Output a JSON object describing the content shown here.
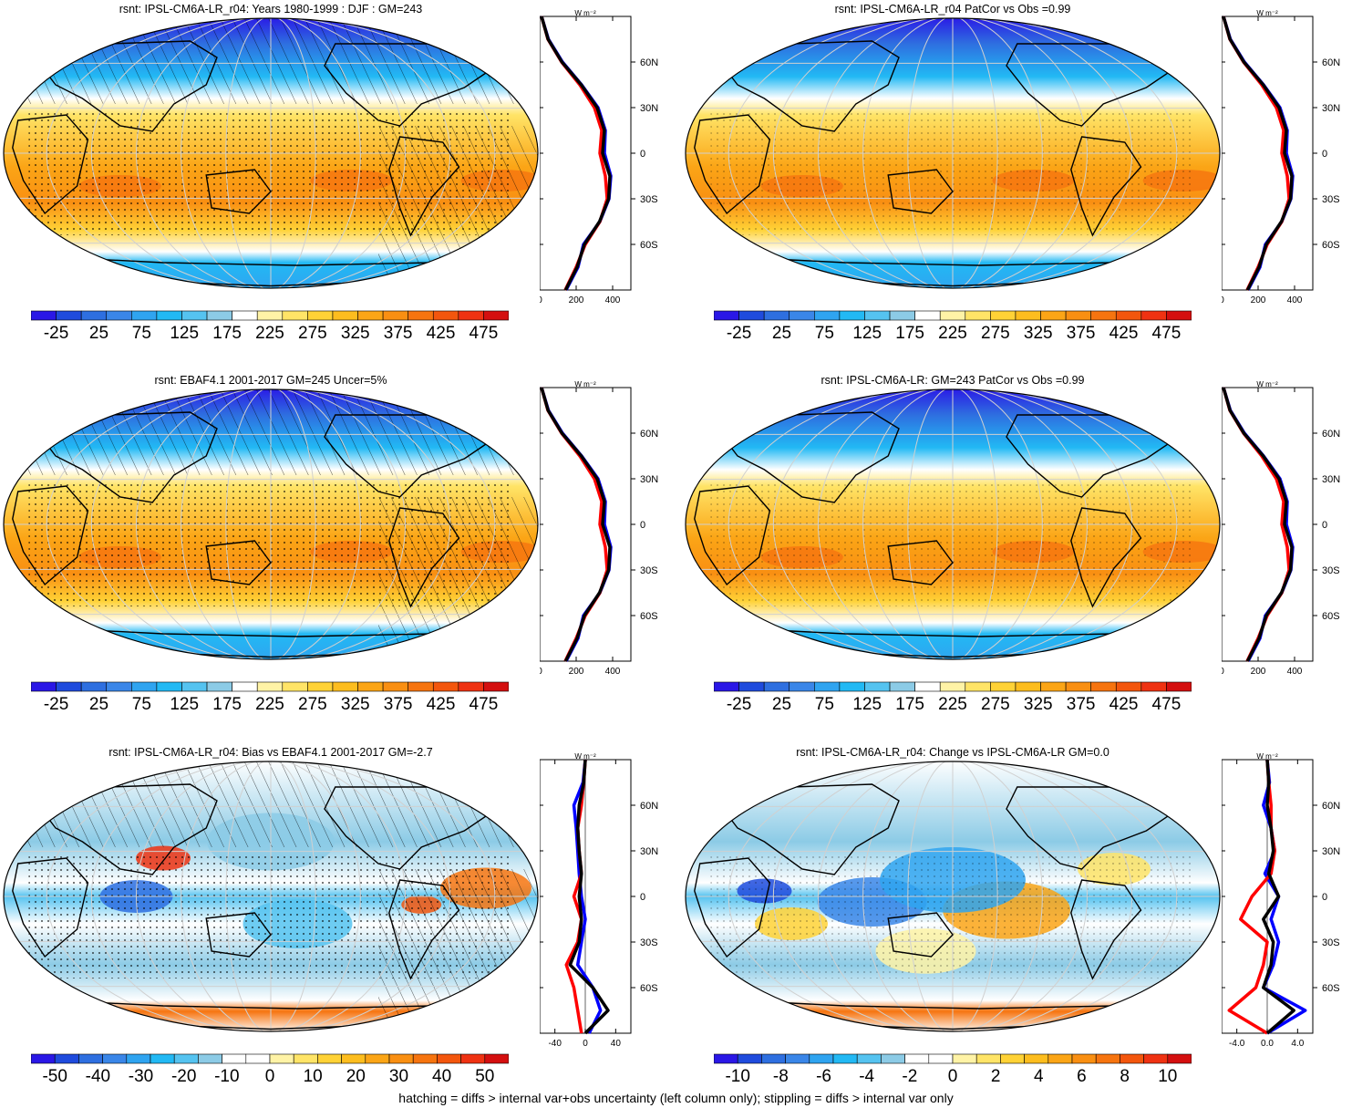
{
  "footer": "hatching = diffs > internal var+obs uncertainty (left column only); stippling = diffs > internal var only",
  "colors": {
    "mean_scale": [
      "#2a17e6",
      "#1f4bdd",
      "#2e6fe0",
      "#3a86e8",
      "#2fa4f0",
      "#22b9f4",
      "#55c3f0",
      "#8ccbe6",
      "#ffffff",
      "#fff3a6",
      "#ffe467",
      "#ffd236",
      "#fdbd1e",
      "#fba516",
      "#f98f12",
      "#f6740f",
      "#f3560d",
      "#ef3212",
      "#d40f0f"
    ],
    "bias_scale": [
      "#2a17e6",
      "#1f4bdd",
      "#2e6fe0",
      "#3a86e8",
      "#2fa4f0",
      "#22b9f4",
      "#55c3f0",
      "#8ccbe6",
      "#ffffff",
      "#ffffff",
      "#fff3a6",
      "#ffe467",
      "#ffd236",
      "#fdbd1e",
      "#fba516",
      "#f98f12",
      "#f6740f",
      "#f3560d",
      "#ef3212",
      "#d40f0f"
    ],
    "model_line": "#ff0000",
    "obs_line": "#0000ff",
    "ens_line": "#000000"
  },
  "profile_units": "W m⁻²",
  "panels": [
    {
      "id": "model-djf",
      "title": "rsnt: IPSL-CM6A-LR_r04: Years 1980-1999 : DJF : GM=243",
      "hatched": true,
      "kind": "mean",
      "colorbar_labels": [
        "-25",
        "25",
        "75",
        "125",
        "175",
        "225",
        "275",
        "325",
        "375",
        "425",
        "475"
      ],
      "profile_xticks": [
        "0",
        "200",
        "400"
      ],
      "profile_yticks": [
        "60N",
        "30N",
        "0",
        "30S",
        "60S"
      ]
    },
    {
      "id": "patcor-1",
      "title": "rsnt: IPSL-CM6A-LR_r04 PatCor vs Obs =0.99",
      "hatched": false,
      "kind": "mean",
      "colorbar_labels": [
        "-25",
        "25",
        "75",
        "125",
        "175",
        "225",
        "275",
        "325",
        "375",
        "425",
        "475"
      ],
      "profile_xticks": [
        "0",
        "200",
        "400"
      ],
      "profile_yticks": [
        "60N",
        "30N",
        "0",
        "30S",
        "60S"
      ]
    },
    {
      "id": "obs-ebaf",
      "title": "rsnt: EBAF4.1 2001-2017 GM=245 Uncer=5%",
      "hatched": true,
      "kind": "mean",
      "colorbar_labels": [
        "-25",
        "25",
        "75",
        "125",
        "175",
        "225",
        "275",
        "325",
        "375",
        "425",
        "475"
      ],
      "profile_xticks": [
        "0",
        "200",
        "400"
      ],
      "profile_yticks": [
        "60N",
        "30N",
        "0",
        "30S",
        "60S"
      ]
    },
    {
      "id": "ensemble",
      "title": "rsnt: IPSL-CM6A-LR: GM=243 PatCor vs Obs =0.99",
      "hatched": false,
      "kind": "mean",
      "colorbar_labels": [
        "-25",
        "25",
        "75",
        "125",
        "175",
        "225",
        "275",
        "325",
        "375",
        "425",
        "475"
      ],
      "profile_xticks": [
        "0",
        "200",
        "400"
      ],
      "profile_yticks": [
        "60N",
        "30N",
        "0",
        "30S",
        "60S"
      ]
    },
    {
      "id": "bias",
      "title": "rsnt: IPSL-CM6A-LR_r04: Bias vs EBAF4.1 2001-2017 GM=-2.7",
      "hatched": true,
      "kind": "bias",
      "colorbar_labels": [
        "-50",
        "-40",
        "-30",
        "-20",
        "-10",
        "0",
        "10",
        "20",
        "30",
        "40",
        "50"
      ],
      "profile_xticks": [
        "-40",
        "0",
        "40"
      ],
      "profile_yticks": [
        "60N",
        "30N",
        "0",
        "30S",
        "60S"
      ]
    },
    {
      "id": "change",
      "title": "rsnt: IPSL-CM6A-LR_r04: Change vs IPSL-CM6A-LR GM=0.0",
      "hatched": false,
      "kind": "change",
      "colorbar_labels": [
        "-10",
        "-8",
        "-6",
        "-4",
        "-2",
        "0",
        "2",
        "4",
        "6",
        "8",
        "10"
      ],
      "profile_xticks": [
        "-4.0",
        "0.0",
        "4.0"
      ],
      "profile_yticks": [
        "60N",
        "30N",
        "0",
        "30S",
        "60S"
      ]
    }
  ],
  "chart_data": [
    {
      "type": "line",
      "title": "rsnt: IPSL-CM6A-LR_r04: Years 1980-1999 : DJF : GM=243",
      "xlabel": "W m⁻²",
      "xlim": [
        0,
        500
      ],
      "ylim": [
        -90,
        90
      ],
      "y_ticks": [
        "60N",
        "30N",
        "0",
        "30S",
        "60S"
      ],
      "lat": [
        90,
        75,
        60,
        45,
        30,
        15,
        0,
        -15,
        -30,
        -45,
        -60,
        -75,
        -90
      ],
      "series": [
        {
          "name": "model",
          "values": [
            10,
            45,
            120,
            220,
            300,
            340,
            330,
            360,
            370,
            330,
            250,
            200,
            140
          ]
        },
        {
          "name": "obs",
          "values": [
            10,
            48,
            125,
            230,
            320,
            360,
            355,
            390,
            380,
            330,
            240,
            210,
            145
          ]
        },
        {
          "name": "ensemble",
          "values": [
            10,
            46,
            122,
            228,
            315,
            355,
            345,
            385,
            378,
            328,
            245,
            205,
            142
          ]
        }
      ]
    },
    {
      "type": "line",
      "title": "rsnt: IPSL-CM6A-LR_r04 PatCor vs Obs =0.99",
      "xlabel": "W m⁻²",
      "xlim": [
        0,
        500
      ],
      "ylim": [
        -90,
        90
      ],
      "y_ticks": [
        "60N",
        "30N",
        "0",
        "30S",
        "60S"
      ],
      "lat": [
        90,
        75,
        60,
        45,
        30,
        15,
        0,
        -15,
        -30,
        -45,
        -60,
        -75,
        -90
      ],
      "series": [
        {
          "name": "model",
          "values": [
            10,
            45,
            120,
            220,
            300,
            340,
            330,
            360,
            370,
            330,
            250,
            200,
            140
          ]
        },
        {
          "name": "obs",
          "values": [
            10,
            48,
            125,
            230,
            320,
            360,
            355,
            390,
            380,
            330,
            240,
            210,
            145
          ]
        },
        {
          "name": "ensemble",
          "values": [
            10,
            46,
            122,
            228,
            315,
            355,
            345,
            385,
            378,
            328,
            245,
            205,
            142
          ]
        }
      ]
    },
    {
      "type": "line",
      "title": "rsnt: EBAF4.1 2001-2017 GM=245 Uncer=5%",
      "xlabel": "W m⁻²",
      "xlim": [
        0,
        500
      ],
      "ylim": [
        -90,
        90
      ],
      "y_ticks": [
        "60N",
        "30N",
        "0",
        "30S",
        "60S"
      ],
      "lat": [
        90,
        75,
        60,
        45,
        30,
        15,
        0,
        -15,
        -30,
        -45,
        -60,
        -75,
        -90
      ],
      "series": [
        {
          "name": "model",
          "values": [
            10,
            45,
            120,
            220,
            300,
            340,
            330,
            360,
            370,
            330,
            250,
            200,
            140
          ]
        },
        {
          "name": "obs",
          "values": [
            10,
            48,
            125,
            230,
            320,
            360,
            355,
            390,
            380,
            330,
            240,
            210,
            145
          ]
        },
        {
          "name": "ensemble",
          "values": [
            10,
            46,
            122,
            228,
            315,
            355,
            345,
            385,
            378,
            328,
            245,
            205,
            142
          ]
        }
      ]
    },
    {
      "type": "line",
      "title": "rsnt: IPSL-CM6A-LR: GM=243 PatCor vs Obs =0.99",
      "xlabel": "W m⁻²",
      "xlim": [
        0,
        500
      ],
      "ylim": [
        -90,
        90
      ],
      "y_ticks": [
        "60N",
        "30N",
        "0",
        "30S",
        "60S"
      ],
      "lat": [
        90,
        75,
        60,
        45,
        30,
        15,
        0,
        -15,
        -30,
        -45,
        -60,
        -75,
        -90
      ],
      "series": [
        {
          "name": "model",
          "values": [
            10,
            45,
            120,
            220,
            300,
            340,
            330,
            360,
            370,
            330,
            250,
            200,
            140
          ]
        },
        {
          "name": "obs",
          "values": [
            10,
            48,
            125,
            230,
            320,
            360,
            355,
            390,
            380,
            330,
            240,
            210,
            145
          ]
        },
        {
          "name": "ensemble",
          "values": [
            10,
            46,
            122,
            228,
            315,
            355,
            345,
            385,
            378,
            328,
            245,
            205,
            142
          ]
        }
      ]
    },
    {
      "type": "line",
      "title": "rsnt: IPSL-CM6A-LR_r04: Bias vs EBAF4.1 2001-2017 GM=-2.7",
      "xlabel": "W m⁻²",
      "xlim": [
        -60,
        60
      ],
      "ylim": [
        -90,
        90
      ],
      "y_ticks": [
        "60N",
        "30N",
        "0",
        "30S",
        "60S"
      ],
      "lat": [
        90,
        75,
        60,
        45,
        30,
        15,
        0,
        -15,
        -30,
        -45,
        -60,
        -75,
        -90
      ],
      "series": [
        {
          "name": "model",
          "values": [
            0,
            -2,
            -5,
            -10,
            -8,
            -5,
            -15,
            -5,
            -10,
            -25,
            -15,
            -10,
            -5
          ]
        },
        {
          "name": "obs",
          "values": [
            0,
            -3,
            -15,
            -12,
            -10,
            -8,
            -5,
            0,
            -5,
            -10,
            10,
            20,
            5
          ]
        },
        {
          "name": "ensemble",
          "values": [
            0,
            -2,
            -8,
            -10,
            -8,
            -5,
            -8,
            -5,
            -8,
            -20,
            10,
            30,
            0
          ]
        }
      ]
    },
    {
      "type": "line",
      "title": "rsnt: IPSL-CM6A-LR_r04: Change vs IPSL-CM6A-LR GM=0.0",
      "xlabel": "W m⁻²",
      "xlim": [
        -6,
        6
      ],
      "ylim": [
        -90,
        90
      ],
      "y_ticks": [
        "60N",
        "30N",
        "0",
        "30S",
        "60S"
      ],
      "lat": [
        90,
        75,
        60,
        45,
        30,
        15,
        0,
        -15,
        -30,
        -45,
        -60,
        -75,
        -90
      ],
      "series": [
        {
          "name": "model",
          "values": [
            0,
            0.2,
            0.5,
            0.5,
            1.0,
            0.5,
            -2.0,
            -3.5,
            0.0,
            -0.5,
            -1.5,
            -5.0,
            0.0
          ]
        },
        {
          "name": "obs",
          "values": [
            0,
            0.3,
            -0.5,
            0.5,
            1.0,
            -0.3,
            1.5,
            0.5,
            1.5,
            0.8,
            -0.5,
            5.0,
            0.0
          ]
        },
        {
          "name": "ensemble",
          "values": [
            0,
            0.2,
            0.0,
            0.5,
            0.8,
            0.2,
            1.5,
            -0.5,
            0.8,
            0.5,
            -0.5,
            3.5,
            0.0
          ]
        }
      ]
    }
  ]
}
